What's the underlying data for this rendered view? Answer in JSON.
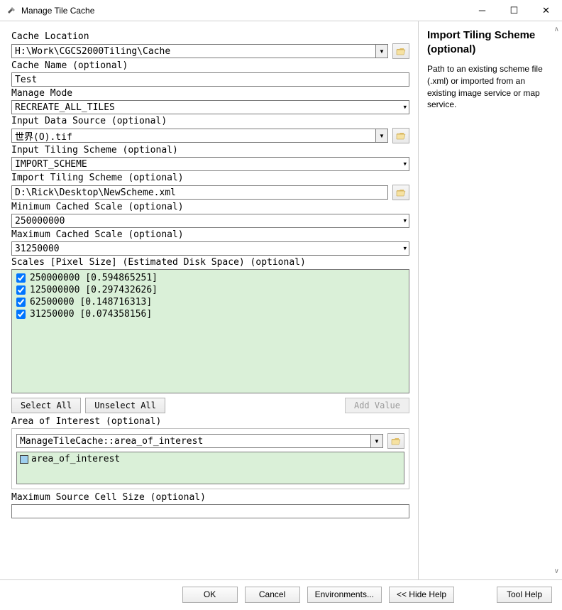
{
  "window": {
    "title": "Manage Tile Cache"
  },
  "fields": {
    "cache_location": {
      "label": "Cache Location",
      "value": "H:\\Work\\CGCS2000Tiling\\Cache"
    },
    "cache_name": {
      "label": "Cache Name (optional)",
      "value": "Test"
    },
    "manage_mode": {
      "label": "Manage Mode",
      "value": "RECREATE_ALL_TILES"
    },
    "input_data_source": {
      "label": "Input Data Source (optional)",
      "value": "世界(O).tif"
    },
    "input_tiling_scheme": {
      "label": "Input Tiling Scheme (optional)",
      "value": "IMPORT_SCHEME"
    },
    "import_tiling_scheme": {
      "label": "Import Tiling Scheme (optional)",
      "value": "D:\\Rick\\Desktop\\NewScheme.xml"
    },
    "min_cached_scale": {
      "label": "Minimum Cached Scale (optional)",
      "value": "250000000"
    },
    "max_cached_scale": {
      "label": "Maximum Cached Scale (optional)",
      "value": "31250000"
    },
    "scales_label": "Scales [Pixel Size] (Estimated Disk Space) (optional)",
    "aoi_label": "Area of Interest (optional)",
    "aoi_value": "ManageTileCache::area_of_interest",
    "aoi_item": "area_of_interest",
    "max_source_cell": {
      "label": "Maximum Source Cell Size (optional)",
      "value": ""
    }
  },
  "scales": [
    {
      "checked": true,
      "text": "250000000 [0.594865251]"
    },
    {
      "checked": true,
      "text": "125000000 [0.297432626]"
    },
    {
      "checked": true,
      "text": "62500000 [0.148716313]"
    },
    {
      "checked": true,
      "text": "31250000 [0.074358156]"
    }
  ],
  "buttons": {
    "select_all": "Select All",
    "unselect_all": "Unselect All",
    "add_value": "Add Value",
    "ok": "OK",
    "cancel": "Cancel",
    "environments": "Environments...",
    "hide_help": "<< Hide Help",
    "tool_help": "Tool Help"
  },
  "help": {
    "title": "Import Tiling Scheme (optional)",
    "body": "Path to an existing scheme file (.xml) or imported from an existing image service or map service."
  },
  "colors": {
    "scales_bg": "#daf0d8",
    "border": "#7a7a7a"
  }
}
